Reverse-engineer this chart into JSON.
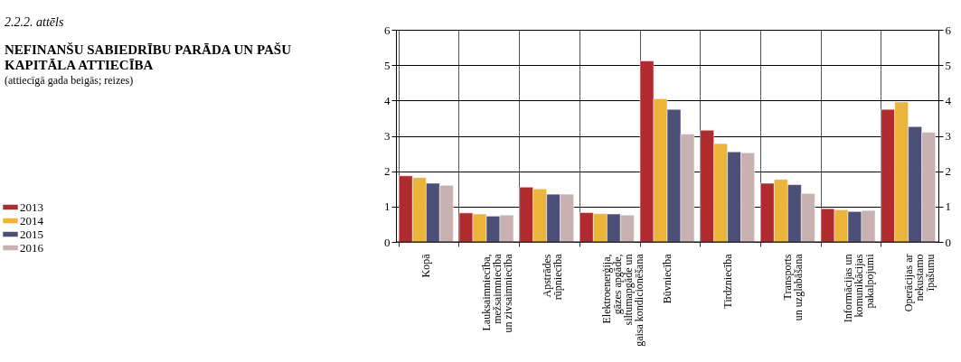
{
  "chart_data": {
    "type": "bar",
    "title": "NEFINANŠU SABIEDRĪBU PARĀDA UN PAŠU KAPITĀLA ATTIECĪBA",
    "subtitle": "(attiecīgā gada beigās; reizes)",
    "annotations": [
      "2.2.2. attēls"
    ],
    "categories": [
      "Kopā",
      "Lauksaimniecība,\nmežsaimniecība\nun zivsaimniecība",
      "Apstrādes\nrūpniecība",
      "Elektroenerģija,\ngāzes apgāde,\nsiltumapgāde un\ngaisa kondicionēšana",
      "Būvniecība",
      "Tirdzniecība",
      "Transports\nun uzglabāšana",
      "Informācijas un\nkomunikācijas\npakalpojumi",
      "Operācijas ar\nnekustamo\nīpašumu"
    ],
    "series": [
      {
        "name": "2013",
        "color": "#b02a2e",
        "values": [
          1.87,
          0.82,
          1.55,
          0.83,
          5.12,
          3.16,
          1.66,
          0.94,
          3.75
        ]
      },
      {
        "name": "2014",
        "color": "#ecb53a",
        "values": [
          1.82,
          0.79,
          1.5,
          0.8,
          4.05,
          2.78,
          1.77,
          0.91,
          3.96
        ]
      },
      {
        "name": "2015",
        "color": "#4c5078",
        "values": [
          1.66,
          0.73,
          1.35,
          0.79,
          3.75,
          2.55,
          1.62,
          0.86,
          3.26
        ]
      },
      {
        "name": "2016",
        "color": "#c9b1b1",
        "values": [
          1.6,
          0.76,
          1.35,
          0.76,
          3.05,
          2.52,
          1.37,
          0.89,
          3.1
        ]
      }
    ],
    "ylim": [
      0,
      6
    ],
    "yticks": [
      0,
      1,
      2,
      3,
      4,
      5,
      6
    ],
    "y2lim": [
      0,
      6
    ],
    "y2ticks": [
      0,
      1,
      2,
      3,
      4,
      5,
      6
    ],
    "grid": true,
    "legend": "left"
  }
}
